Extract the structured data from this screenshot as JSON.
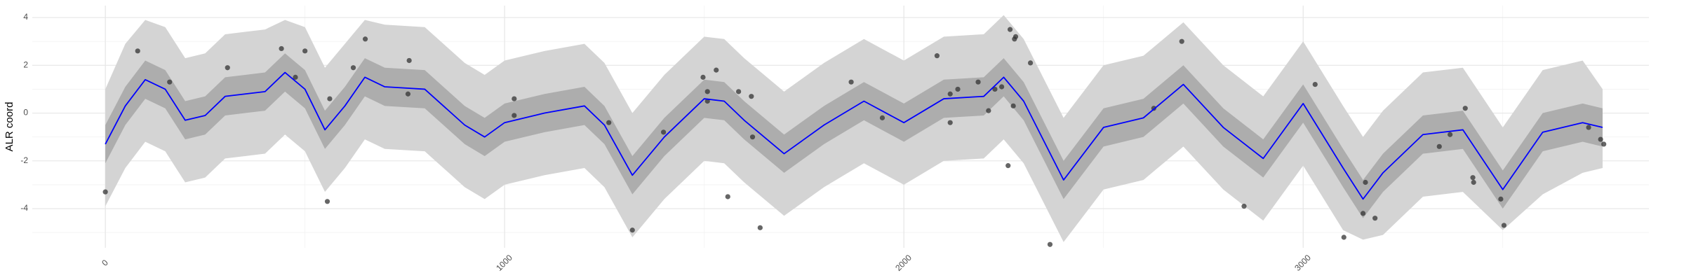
{
  "chart_data": {
    "type": "line",
    "ylabel": "ALR coord",
    "xlim": [
      -183,
      3866
    ],
    "ylim": [
      -5.64,
      4.5
    ],
    "xticks": [
      0,
      1000,
      2000,
      3000
    ],
    "yticks": [
      -4,
      -2,
      0,
      2,
      4
    ],
    "minor_xticks": [
      500,
      1500,
      2500,
      3500
    ],
    "minor_yticks": [
      -5,
      -3,
      -1,
      1,
      3
    ],
    "grid": true,
    "x": [
      0,
      50,
      100,
      150,
      200,
      250,
      300,
      350,
      400,
      450,
      500,
      550,
      600,
      650,
      700,
      800,
      900,
      950,
      1000,
      1100,
      1200,
      1250,
      1320,
      1400,
      1500,
      1550,
      1600,
      1700,
      1800,
      1900,
      2000,
      2100,
      2200,
      2250,
      2300,
      2400,
      2500,
      2600,
      2700,
      2800,
      2900,
      3000,
      3100,
      3150,
      3200,
      3300,
      3400,
      3500,
      3600,
      3700,
      3750
    ],
    "series": [
      {
        "color": "#0000ff",
        "values": [
          -1.3,
          0.3,
          1.4,
          1.0,
          -0.3,
          -0.1,
          0.7,
          0.8,
          0.9,
          1.7,
          1.0,
          -0.7,
          0.3,
          1.5,
          1.1,
          1.0,
          -0.5,
          -1.0,
          -0.4,
          0.0,
          0.3,
          -0.5,
          -2.6,
          -1.0,
          0.6,
          0.5,
          -0.3,
          -1.7,
          -0.5,
          0.5,
          -0.4,
          0.6,
          0.7,
          1.5,
          0.5,
          -2.8,
          -0.6,
          -0.2,
          1.2,
          -0.6,
          -1.9,
          0.4,
          -2.3,
          -3.6,
          -2.5,
          -0.9,
          -0.7,
          -3.2,
          -0.8,
          -0.4,
          -0.6
        ]
      }
    ],
    "bands": [
      {
        "color": "#d4d4d4",
        "lower": [
          -3.9,
          -2.3,
          -1.2,
          -1.6,
          -2.9,
          -2.7,
          -1.9,
          -1.8,
          -1.7,
          -0.9,
          -1.6,
          -3.3,
          -2.3,
          -1.1,
          -1.5,
          -1.6,
          -3.1,
          -3.6,
          -3.0,
          -2.6,
          -2.3,
          -3.1,
          -5.2,
          -3.6,
          -2.0,
          -2.1,
          -2.9,
          -4.3,
          -3.1,
          -2.1,
          -3.0,
          -2.0,
          -1.9,
          -1.1,
          -2.1,
          -5.4,
          -3.2,
          -2.8,
          -1.4,
          -3.2,
          -4.5,
          -2.2,
          -4.9,
          -5.3,
          -5.1,
          -3.5,
          -3.3,
          -4.9,
          -3.4,
          -2.5,
          -2.3
        ],
        "upper": [
          1.0,
          2.9,
          3.9,
          3.6,
          2.3,
          2.5,
          3.3,
          3.4,
          3.5,
          3.9,
          3.6,
          1.9,
          2.9,
          3.9,
          3.7,
          3.6,
          2.1,
          1.6,
          2.2,
          2.6,
          2.9,
          2.1,
          0.0,
          1.6,
          3.2,
          3.1,
          2.3,
          0.9,
          2.1,
          3.1,
          2.2,
          3.2,
          3.3,
          4.1,
          3.1,
          -0.2,
          2.0,
          2.4,
          3.8,
          2.0,
          0.7,
          3.0,
          0.3,
          -1.0,
          0.1,
          1.7,
          1.9,
          -0.6,
          1.8,
          2.2,
          1.0
        ]
      },
      {
        "color": "#adadad",
        "lower": [
          -2.1,
          -0.5,
          0.6,
          0.2,
          -1.1,
          -0.9,
          -0.1,
          0.0,
          0.1,
          0.9,
          0.2,
          -1.5,
          -0.5,
          0.7,
          0.3,
          0.2,
          -1.3,
          -1.8,
          -1.2,
          -0.8,
          -0.5,
          -1.3,
          -3.4,
          -1.8,
          -0.2,
          -0.3,
          -1.1,
          -2.5,
          -1.3,
          -0.3,
          -1.2,
          -0.2,
          -0.1,
          0.7,
          -0.3,
          -3.6,
          -1.4,
          -1.0,
          0.4,
          -1.4,
          -2.7,
          -0.4,
          -3.1,
          -4.4,
          -3.3,
          -1.7,
          -1.5,
          -4.0,
          -1.6,
          -1.2,
          -1.4
        ],
        "upper": [
          -0.5,
          1.1,
          2.2,
          1.8,
          0.5,
          0.7,
          1.5,
          1.6,
          1.7,
          2.5,
          1.8,
          0.1,
          1.1,
          2.3,
          1.9,
          1.8,
          0.3,
          -0.2,
          0.4,
          0.8,
          1.1,
          0.3,
          -1.8,
          -0.2,
          1.4,
          1.3,
          0.5,
          -0.9,
          0.3,
          1.3,
          0.4,
          1.4,
          1.5,
          2.3,
          1.3,
          -2.0,
          0.2,
          0.6,
          2.0,
          0.2,
          -1.1,
          1.2,
          -1.5,
          -2.8,
          -1.7,
          -0.1,
          0.1,
          -2.4,
          0.0,
          0.4,
          0.2
        ]
      }
    ],
    "points": {
      "color": "#333333",
      "x": [
        0,
        81,
        161,
        306,
        441,
        476,
        500,
        556,
        562,
        621,
        651,
        761,
        758,
        1024,
        1024,
        1261,
        1320,
        1398,
        1497,
        1530,
        1508,
        1508,
        1559,
        1586,
        1618,
        1621,
        1640,
        1868,
        1946,
        2083,
        2116,
        2116,
        2135,
        2186,
        2212,
        2228,
        2245,
        2261,
        2266,
        2274,
        2277,
        2280,
        2317,
        2366,
        2626,
        2696,
        2852,
        3030,
        3102,
        3156,
        3150,
        3180,
        3341,
        3368,
        3406,
        3425,
        3427,
        3495,
        3503,
        3715,
        3745,
        3753
      ],
      "y": [
        -3.3,
        2.6,
        1.3,
        1.9,
        2.7,
        1.5,
        2.6,
        -3.7,
        0.6,
        1.9,
        3.1,
        2.2,
        0.8,
        0.6,
        -0.1,
        -0.4,
        -4.9,
        -0.8,
        1.5,
        1.8,
        0.9,
        0.5,
        -3.5,
        0.9,
        0.7,
        -1.0,
        -4.8,
        1.3,
        -0.2,
        2.4,
        -0.4,
        0.8,
        1.0,
        1.3,
        0.1,
        1.0,
        1.1,
        -2.2,
        3.5,
        0.3,
        3.1,
        3.2,
        2.1,
        -5.5,
        0.2,
        3.0,
        -3.9,
        1.2,
        -5.2,
        -2.9,
        -4.2,
        -4.4,
        -1.4,
        -0.9,
        0.2,
        -2.7,
        -2.9,
        -3.6,
        -4.7,
        -0.6,
        -1.1,
        -1.3
      ]
    }
  }
}
